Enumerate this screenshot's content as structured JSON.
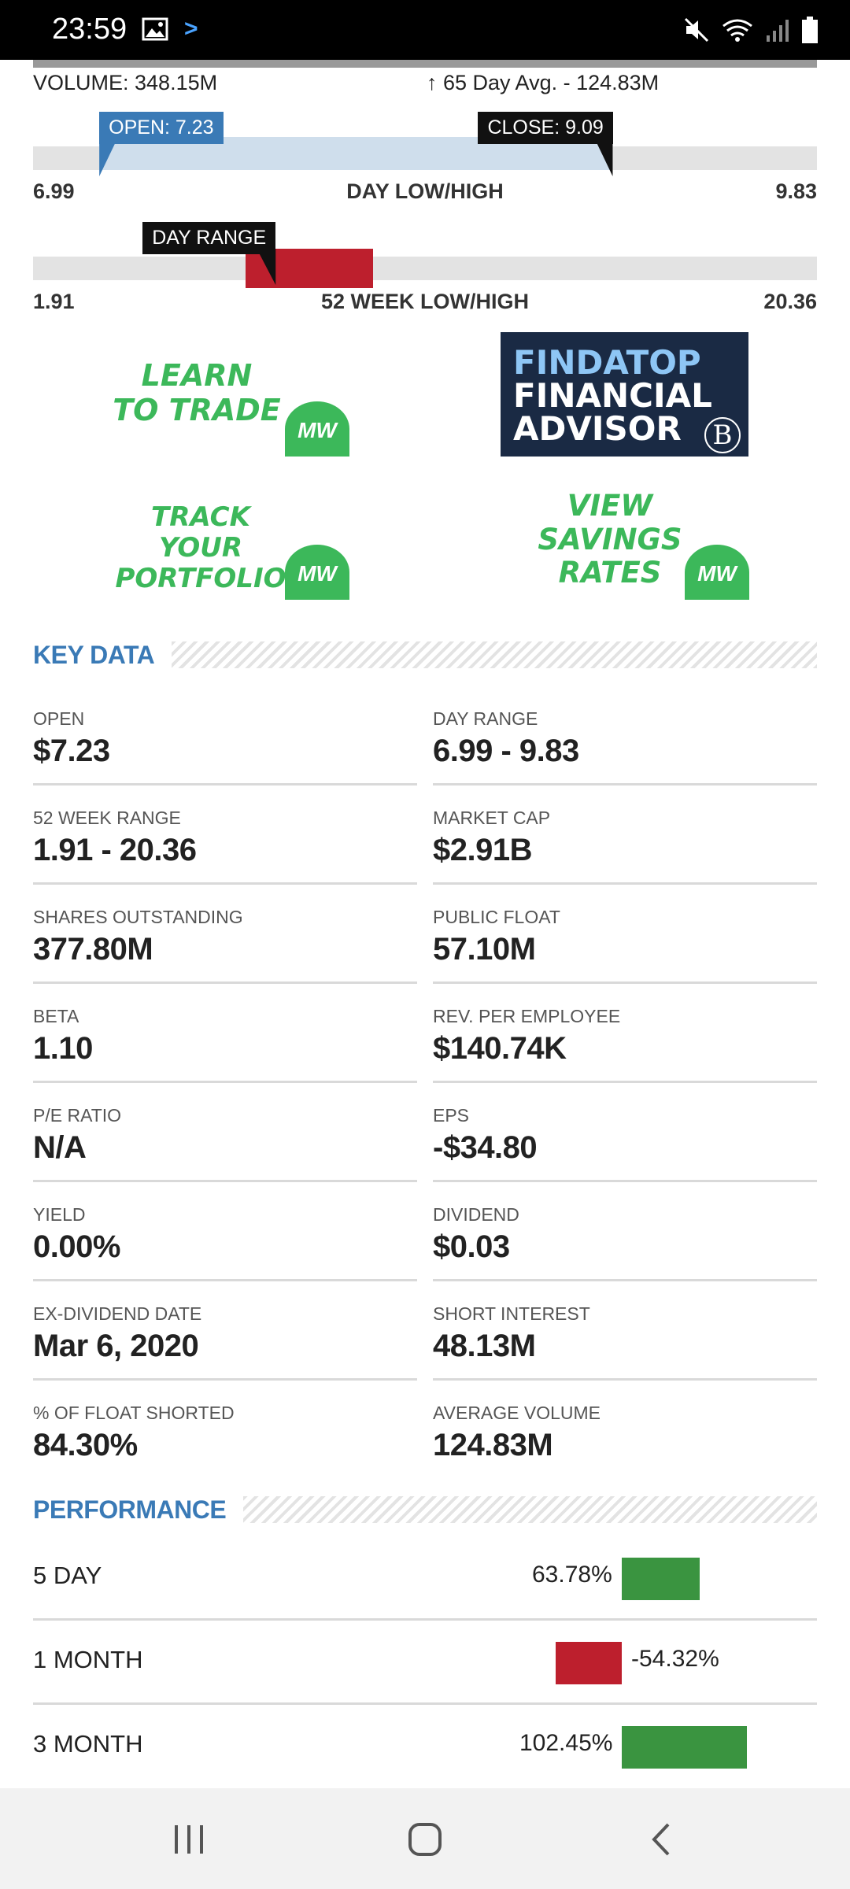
{
  "status_bar": {
    "time": "23:59",
    "icons": [
      "image-icon",
      "chevron-icon",
      "mute-icon",
      "wifi-icon",
      "signal-icon",
      "battery-icon"
    ]
  },
  "volume": {
    "left": "VOLUME: 348.15M",
    "right": "↑ 65 Day Avg. - 124.83M"
  },
  "day_range_bar": {
    "open_flag": "OPEN: 7.23",
    "close_flag": "CLOSE: 9.09",
    "low": "6.99",
    "label": "DAY LOW/HIGH",
    "high": "9.83",
    "low_value": 6.99,
    "high_value": 9.83,
    "open_value": 7.23,
    "close_value": 9.09
  },
  "week52_bar": {
    "flag": "DAY RANGE",
    "low": "1.91",
    "label": "52 WEEK LOW/HIGH",
    "high": "20.36",
    "low_value": 1.91,
    "high_value": 20.36,
    "day_low_value": 6.99,
    "day_high_value": 9.83
  },
  "ads": {
    "learn": {
      "line1": "LEARN",
      "line2": "TO TRADE",
      "logo": "MW"
    },
    "findatop": {
      "line1": "FINDATOP",
      "line2": "FINANCIAL",
      "line3": "ADVISOR",
      "logo": "B"
    },
    "track": {
      "line1": "TRACK YOUR",
      "line2": "PORTFOLIO",
      "logo": "MW"
    },
    "savings": {
      "line1": "VIEW",
      "line2": "SAVINGS",
      "line3": "RATES",
      "logo": "MW"
    }
  },
  "key_data": {
    "title": "KEY DATA",
    "items": [
      {
        "label": "OPEN",
        "value": "$7.23"
      },
      {
        "label": "DAY RANGE",
        "value": "6.99 - 9.83"
      },
      {
        "label": "52 WEEK RANGE",
        "value": "1.91 - 20.36"
      },
      {
        "label": "MARKET CAP",
        "value": "$2.91B"
      },
      {
        "label": "SHARES OUTSTANDING",
        "value": "377.80M"
      },
      {
        "label": "PUBLIC FLOAT",
        "value": "57.10M"
      },
      {
        "label": "BETA",
        "value": "1.10"
      },
      {
        "label": "REV. PER EMPLOYEE",
        "value": "$140.74K"
      },
      {
        "label": "P/E RATIO",
        "value": "N/A"
      },
      {
        "label": "EPS",
        "value": "-$34.80"
      },
      {
        "label": "YIELD",
        "value": "0.00%"
      },
      {
        "label": "DIVIDEND",
        "value": "$0.03"
      },
      {
        "label": "EX-DIVIDEND DATE",
        "value": "Mar 6, 2020"
      },
      {
        "label": "SHORT INTEREST",
        "value": "48.13M"
      },
      {
        "label": "% OF FLOAT SHORTED",
        "value": "84.30%"
      },
      {
        "label": "AVERAGE VOLUME",
        "value": "124.83M"
      }
    ]
  },
  "performance": {
    "title": "PERFORMANCE",
    "rows": [
      {
        "label": "5 DAY",
        "value_text": "63.78%",
        "value": 63.78
      },
      {
        "label": "1 MONTH",
        "value_text": "-54.32%",
        "value": -54.32
      },
      {
        "label": "3 MONTH",
        "value_text": "102.45%",
        "value": 102.45
      }
    ],
    "colors": {
      "positive": "#3a9440",
      "negative": "#bd1f2d"
    }
  },
  "nav_bar": {
    "icons": [
      "recent-apps-icon",
      "home-icon",
      "back-icon"
    ]
  }
}
